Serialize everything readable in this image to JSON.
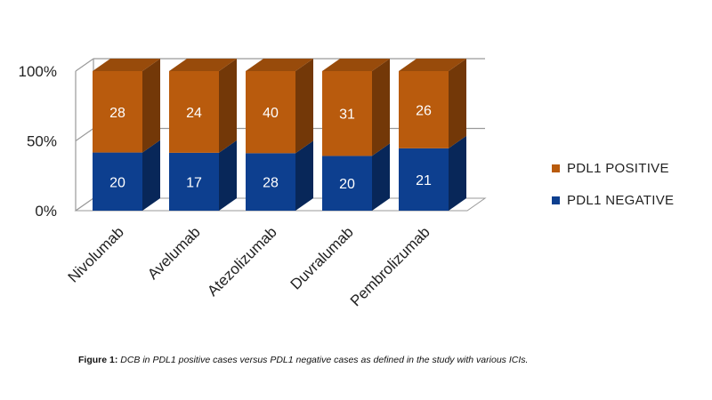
{
  "chart_data": {
    "type": "bar",
    "stacked": true,
    "percent_stacked": true,
    "categories": [
      "Nivolumab",
      "Avelumab",
      "Atezolizumab",
      "Duvralumab",
      "Pembrolizumab"
    ],
    "series": [
      {
        "name": "PDL1 NEGATIVE",
        "values": [
          20,
          17,
          28,
          20,
          21
        ],
        "color": "#0d3f8f"
      },
      {
        "name": "PDL1 POSITIVE",
        "values": [
          28,
          24,
          40,
          31,
          26
        ],
        "color": "#b95b0d"
      }
    ],
    "yticks": [
      "0%",
      "50%",
      "100%"
    ],
    "ylim": [
      0,
      100
    ],
    "legend_position": "right",
    "grid": true
  },
  "caption": {
    "label": "Figure 1:",
    "text": "DCB in PDL1 positive cases versus PDL1 negative cases as defined in the study with various ICIs."
  }
}
